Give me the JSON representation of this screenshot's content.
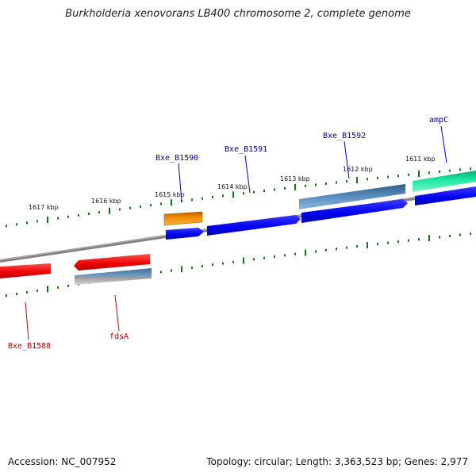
{
  "title": "Burkholderia xenovorans LB400 chromosome 2, complete genome",
  "footer": {
    "accession": "Accession: NC_007952",
    "summary": "Topology: circular; Length: 3,363,523 bp; Genes: 2,977"
  },
  "colors": {
    "forward_cds": "#0000ee",
    "reverse_cds": "#ee0000",
    "rna": "#4a7fb0",
    "orange_feature": "#f08c00",
    "teal_feature": "#19e6a0",
    "backbone": "#808080",
    "ticks": "#117711",
    "forward_label": "#00008b",
    "reverse_label": "#b00000"
  },
  "kbp_ticks": [
    {
      "label": "1617 kbp"
    },
    {
      "label": "1616 kbp"
    },
    {
      "label": "1615 kbp"
    },
    {
      "label": "1614 kbp"
    },
    {
      "label": "1613 kbp"
    },
    {
      "label": "1612 kbp"
    },
    {
      "label": "1611 kbp"
    }
  ],
  "forward_labels": [
    {
      "text": "Bxe_B1590"
    },
    {
      "text": "Bxe_B1591"
    },
    {
      "text": "Bxe_B1592"
    },
    {
      "text": "ampC"
    }
  ],
  "reverse_labels": [
    {
      "text": "Bxe_B1588"
    },
    {
      "text": "fdsA"
    }
  ]
}
